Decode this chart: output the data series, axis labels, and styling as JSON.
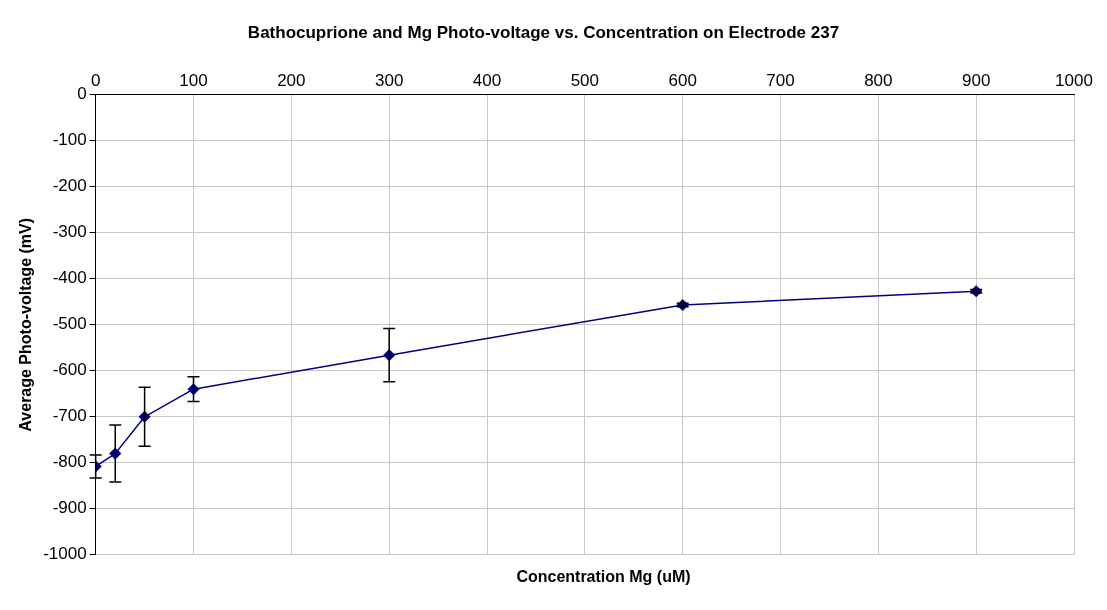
{
  "chart_data": {
    "type": "line",
    "title": "Bathocuprione and Mg Photo-voltage vs. Concentration on Electrode 237",
    "xlabel": "Concentration Mg (uM)",
    "ylabel": "Average Photo-voltage (mV)",
    "x": [
      0,
      20,
      50,
      100,
      300,
      600,
      900
    ],
    "series": [
      {
        "color": "#000080",
        "values": [
          -808,
          -780,
          -700,
          -640,
          -566,
          -457,
          -427
        ],
        "errors": [
          25,
          62,
          64,
          27,
          58,
          4,
          4
        ]
      }
    ],
    "xlim": [
      0,
      1000
    ],
    "xticks": [
      0,
      100,
      200,
      300,
      400,
      500,
      600,
      700,
      800,
      900,
      1000
    ],
    "ylim": [
      -1000,
      0
    ],
    "yticks": [
      -1000,
      -900,
      -800,
      -700,
      -600,
      -500,
      -400,
      -300,
      -200,
      -100,
      0
    ],
    "grid": true,
    "legend": false,
    "marker": "diamond",
    "line_style": "solid"
  }
}
